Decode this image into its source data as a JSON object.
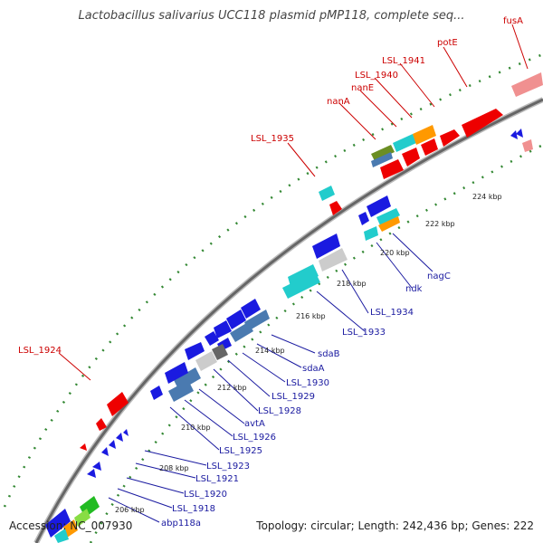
{
  "title": "Lactobacillus salivarius UCC118 plasmid pMP118, complete seq...",
  "footer": {
    "accession": "Accession: NC_007930",
    "summary": "Topology: circular; Length: 242,436 bp; Genes: 222"
  },
  "colors": {
    "forward_label": "#cc0000",
    "reverse_label": "#1a1aa0",
    "ring": "#666666",
    "dots": "#338833"
  },
  "kbp_ticks": [
    {
      "label": "206 kbp"
    },
    {
      "label": "208 kbp"
    },
    {
      "label": "210 kbp"
    },
    {
      "label": "212 kbp"
    },
    {
      "label": "214 kbp"
    },
    {
      "label": "216 kbp"
    },
    {
      "label": "218 kbp"
    },
    {
      "label": "220 kbp"
    },
    {
      "label": "222 kbp"
    },
    {
      "label": "224 kbp"
    }
  ],
  "forward_labels": [
    "fusA",
    "potE",
    "LSL_1941",
    "LSL_1940",
    "nanE",
    "nanA",
    "LSL_1935",
    "LSL_1924"
  ],
  "reverse_labels": [
    "nagC",
    "ndk",
    "LSL_1934",
    "LSL_1933",
    "sdaB",
    "sdaA",
    "LSL_1930",
    "LSL_1929",
    "LSL_1928",
    "avtA",
    "LSL_1926",
    "LSL_1925",
    "LSL_1923",
    "LSL_1921",
    "LSL_1920",
    "LSL_1918",
    "abp118a"
  ]
}
